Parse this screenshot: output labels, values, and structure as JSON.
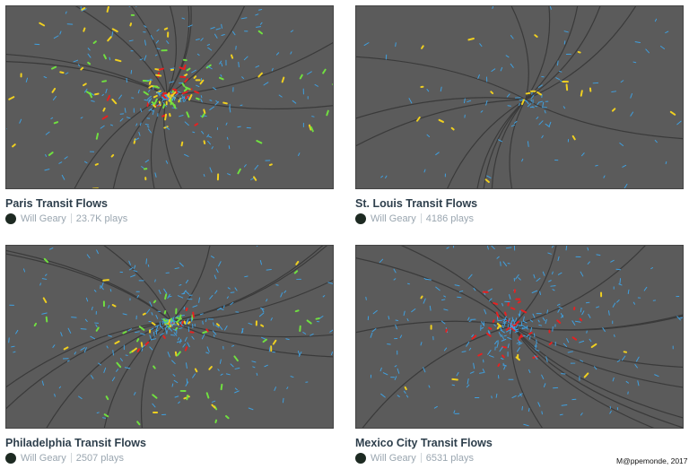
{
  "cards": [
    {
      "title": "Paris Transit Flows",
      "author": "Will Geary",
      "plays": "23.7K plays"
    },
    {
      "title": "St. Louis Transit Flows",
      "author": "Will Geary",
      "plays": "4186 plays"
    },
    {
      "title": "Philadelphia Transit Flows",
      "author": "Will Geary",
      "plays": "2507 plays"
    },
    {
      "title": "Mexico City Transit Flows",
      "author": "Will Geary",
      "plays": "6531 plays"
    }
  ],
  "credit": "M@ppemonde, 2017",
  "colors": {
    "map_bg": "#5b5b5b",
    "road": "#3a3a3a",
    "flow_blue": "#3fa0e0",
    "flow_yellow": "#f0d020",
    "flow_green": "#70e040",
    "flow_red": "#e82020"
  }
}
